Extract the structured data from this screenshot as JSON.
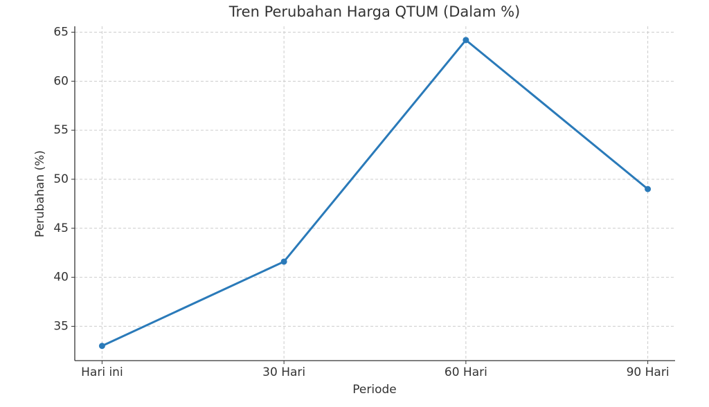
{
  "chart_data": {
    "type": "line",
    "title": "Tren Perubahan Harga QTUM (Dalam %)",
    "x_label": "Periode",
    "y_label": "Perubahan (%)",
    "categories": [
      "Hari ini",
      "30 Hari",
      "60 Hari",
      "90 Hari"
    ],
    "series": [
      {
        "name": "QTUM",
        "color": "#2a7ab9",
        "values": [
          33.0,
          41.6,
          64.2,
          49.0
        ]
      }
    ],
    "ylim": [
      31.5,
      65.6
    ],
    "yticks": [
      35,
      40,
      45,
      50,
      55,
      60,
      65
    ],
    "grid": true
  }
}
